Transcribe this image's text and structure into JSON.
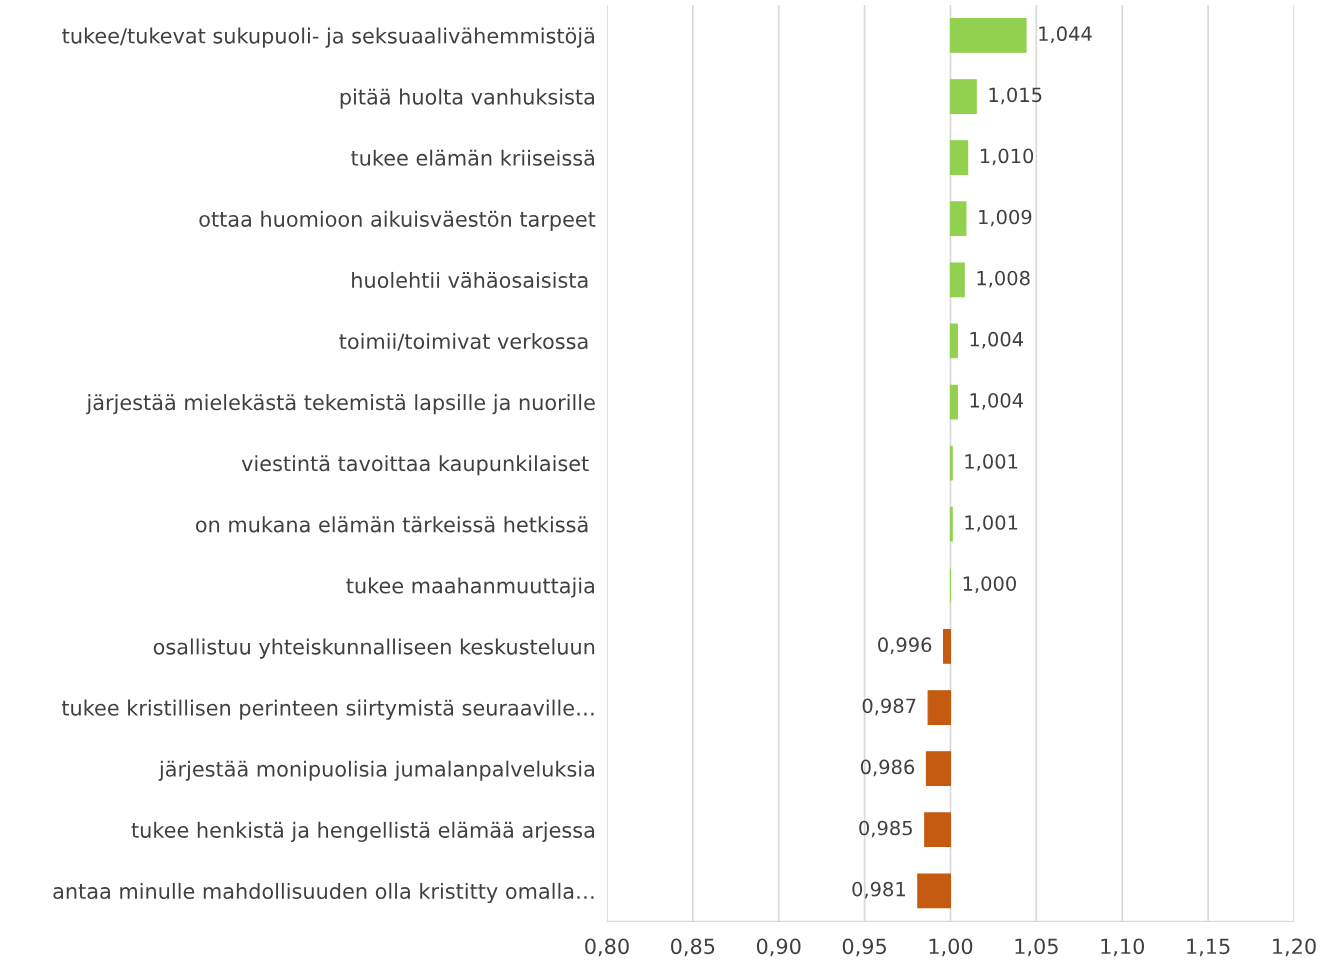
{
  "chart_data": {
    "type": "bar",
    "orientation": "horizontal",
    "categories": [
      "tukee/tukevat sukupuoli- ja seksuaalivähemmistöjä",
      "pitää huolta vanhuksista",
      "tukee elämän kriiseissä",
      "ottaa huomioon aikuisväestön tarpeet",
      "huolehtii vähäosaisista ",
      "toimii/toimivat verkossa ",
      "järjestää mielekästä tekemistä lapsille ja nuorille",
      "viestintä tavoittaa kaupunkilaiset ",
      "on mukana elämän tärkeissä hetkissä ",
      "tukee maahanmuuttajia",
      "osallistuu yhteiskunnalliseen keskusteluun",
      "tukee kristillisen perinteen siirtymistä seuraaville…",
      "järjestää monipuolisia jumalanpalveluksia",
      "tukee henkistä ja hengellistä elämää arjessa",
      "antaa minulle mahdollisuuden olla kristitty omalla…"
    ],
    "base": [
      1.0,
      1.0,
      1.0,
      1.0,
      1.0,
      1.0,
      1.0,
      1.0,
      1.0,
      1.0,
      1.0,
      1.0,
      1.0,
      1.0,
      1.0
    ],
    "values": [
      0.044,
      0.015,
      0.01,
      0.009,
      0.008,
      0.004,
      0.004,
      0.001,
      0.001,
      0.0,
      -0.004,
      -0.013,
      -0.014,
      -0.015,
      -0.019
    ],
    "value_labels": [
      "1,044",
      "1,015",
      "1,010",
      "1,009",
      "1,008",
      "1,004",
      "1,004",
      "1,001",
      "1,001",
      "1,000",
      "0,996",
      "0,987",
      "0,986",
      "0,985",
      "0,981"
    ],
    "colors": [
      "#92d050",
      "#92d050",
      "#92d050",
      "#92d050",
      "#92d050",
      "#92d050",
      "#92d050",
      "#92d050",
      "#92d050",
      "#92d050",
      "#c55a11",
      "#c55a11",
      "#c55a11",
      "#c55a11",
      "#c55a11"
    ],
    "xlim": [
      0.8,
      1.2
    ],
    "xticks": [
      {
        "value": 0.8,
        "label": "0,80"
      },
      {
        "value": 0.85,
        "label": "0,85"
      },
      {
        "value": 0.9,
        "label": "0,90"
      },
      {
        "value": 0.95,
        "label": "0,95"
      },
      {
        "value": 1.0,
        "label": "1,00"
      },
      {
        "value": 1.05,
        "label": "1,05"
      },
      {
        "value": 1.1,
        "label": "1,10"
      },
      {
        "value": 1.15,
        "label": "1,15"
      },
      {
        "value": 1.2,
        "label": "1,20"
      }
    ],
    "grid": "x"
  }
}
